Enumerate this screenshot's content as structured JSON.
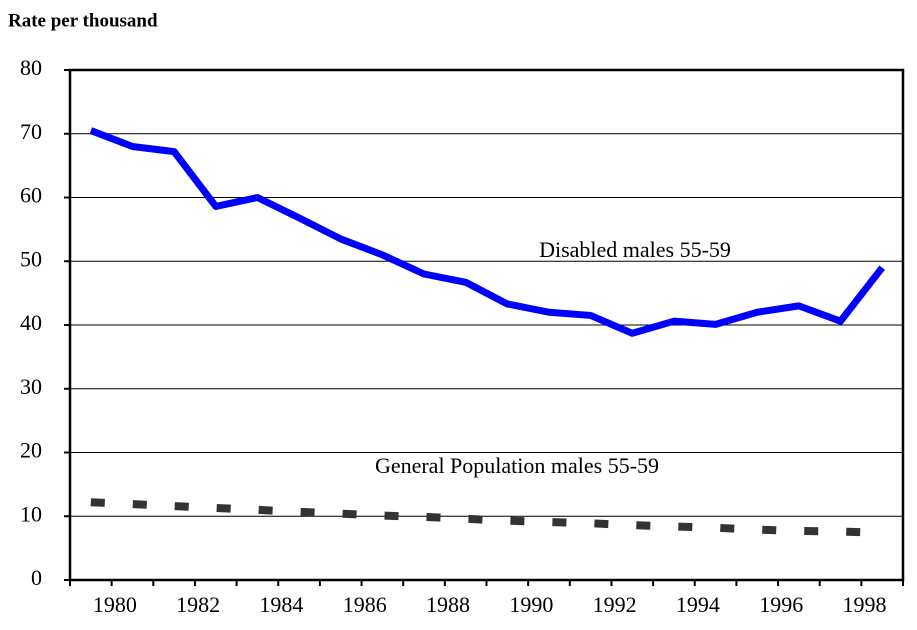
{
  "chart_data": {
    "type": "line",
    "y_label": "Rate per thousand",
    "categories": [
      "1980",
      null,
      "1982",
      null,
      "1984",
      null,
      "1986",
      null,
      "1988",
      null,
      "1990",
      null,
      "1992",
      null,
      "1994",
      null,
      "1996",
      null,
      "1998",
      null
    ],
    "series": [
      {
        "name": "Disabled males 55-59",
        "color": "#0000ff",
        "dashed": false,
        "values": [
          70.5,
          68,
          67.2,
          58.6,
          60,
          56.8,
          53.5,
          51,
          48,
          46.7,
          43.3,
          42,
          41.5,
          38.7,
          40.6,
          40.1,
          42,
          43,
          40.6,
          49
        ]
      },
      {
        "name": "General Population males 55-59",
        "color": "#333333",
        "dashed": true,
        "values": [
          12.2,
          11.9,
          11.6,
          11.3,
          11,
          10.7,
          10.4,
          10.1,
          9.9,
          9.6,
          9.3,
          9.1,
          8.9,
          8.6,
          8.4,
          8.2,
          7.9,
          7.7,
          7.6,
          7.4
        ]
      }
    ],
    "ylim": [
      0,
      80
    ],
    "yticks": [
      0,
      10,
      20,
      30,
      40,
      50,
      60,
      70,
      80
    ],
    "grid": true
  }
}
